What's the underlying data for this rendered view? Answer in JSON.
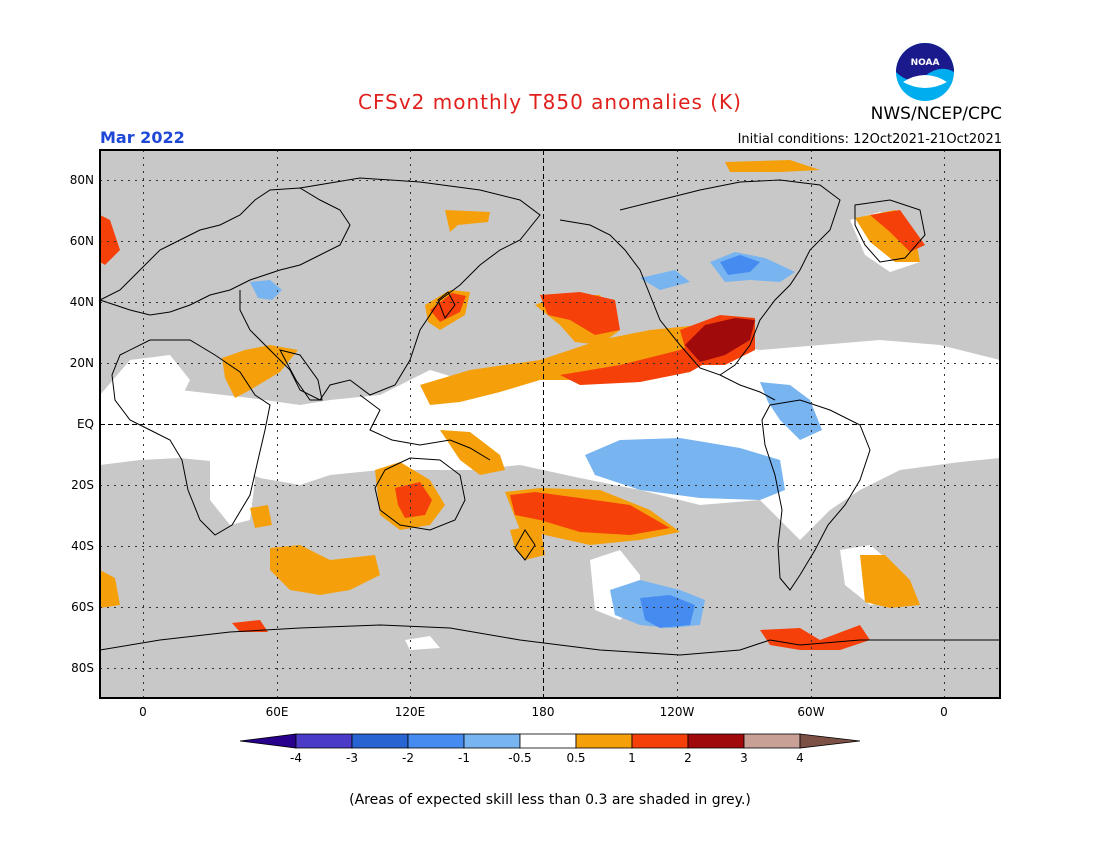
{
  "header": {
    "title": "CFSv2 monthly T850 anomalies (K)",
    "agency": "NWS/NCEP/CPC",
    "logo_text": "NOAA",
    "period": "Mar 2022",
    "initial_conditions": "Initial conditions: 12Oct2021-21Oct2021"
  },
  "map": {
    "lat_labels": [
      "80N",
      "60N",
      "40N",
      "20N",
      "EQ",
      "20S",
      "40S",
      "60S",
      "80S"
    ],
    "lon_labels": [
      "0",
      "60E",
      "120E",
      "180",
      "120W",
      "60W",
      "0"
    ],
    "colors": {
      "skill_grey": "#c8c8c8",
      "neutral": "#ffffff",
      "cold_0_5": "#78b4f0",
      "cold_1": "#468cf0",
      "warm_0_5": "#f5a00a",
      "warm_1": "#f5400a",
      "warm_2": "#a00a0a"
    }
  },
  "colorbar": {
    "tick_labels": [
      "-4",
      "-3",
      "-2",
      "-1",
      "-0.5",
      "0.5",
      "1",
      "2",
      "3",
      "4"
    ],
    "colors": [
      "#28008c",
      "#4b3cc8",
      "#2864d2",
      "#468cf0",
      "#78b4f0",
      "#ffffff",
      "#f5a00a",
      "#f5400a",
      "#a00a0a",
      "#c8a096",
      "#7d5046"
    ]
  },
  "footnote": "(Areas of expected skill less than 0.3 are shaded in grey.)"
}
